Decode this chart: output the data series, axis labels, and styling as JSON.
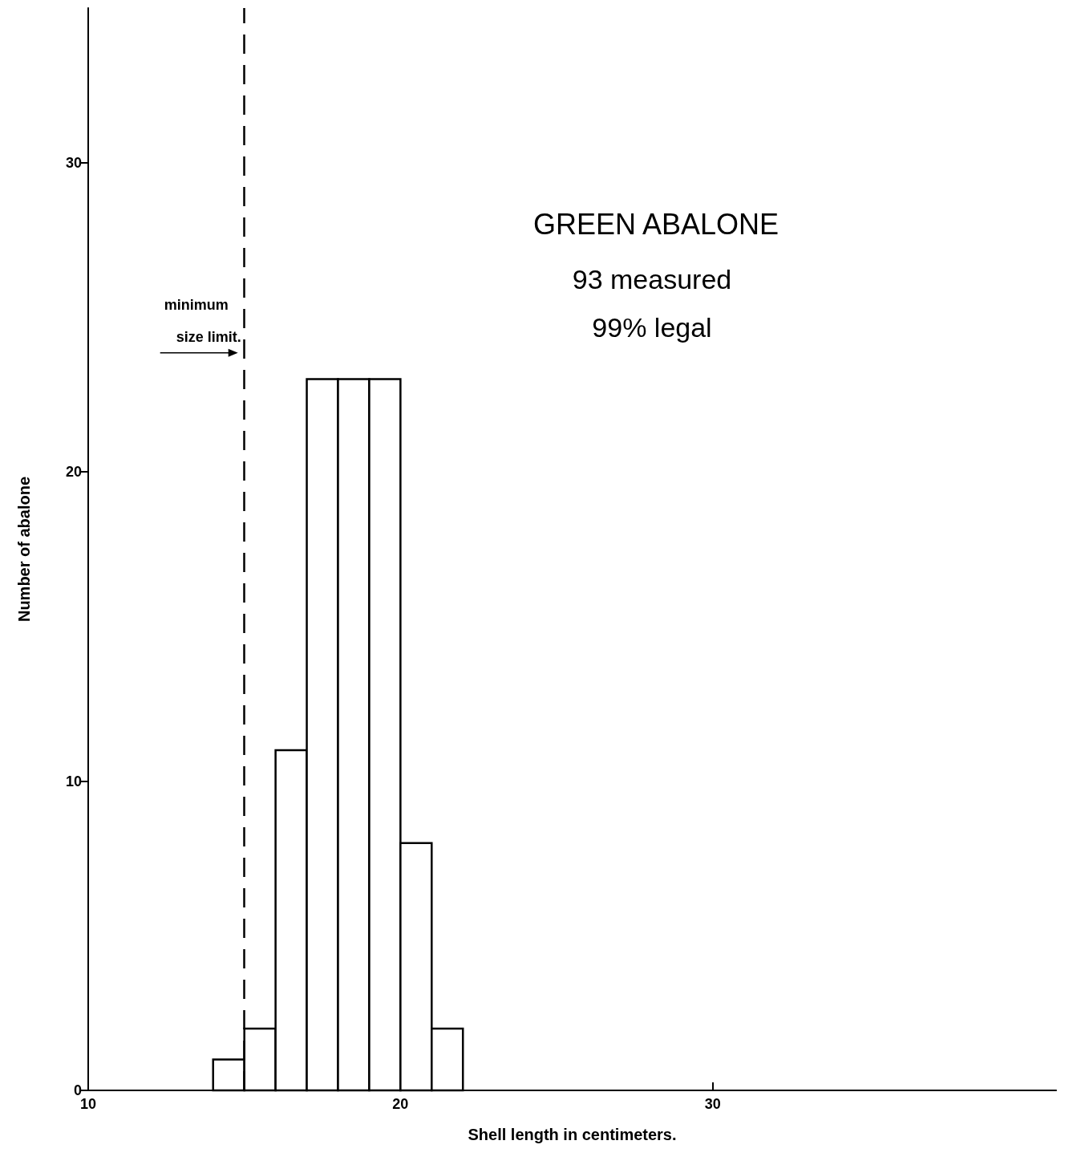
{
  "chart_data": {
    "type": "histogram",
    "title": "GREEN ABALONE",
    "annotations": [
      "93 measured",
      "99% legal"
    ],
    "xlabel": "Shell length in centimeters.",
    "ylabel": "Number of abalone",
    "bins": [
      14,
      15,
      16,
      17,
      18,
      19,
      20,
      21,
      22
    ],
    "values": [
      1,
      2,
      11,
      23,
      23,
      23,
      8,
      2
    ],
    "color": "#000000",
    "xlim": [
      10,
      41
    ],
    "xticks": [
      10,
      20,
      30
    ],
    "ylim": [
      0,
      35
    ],
    "yticks": [
      0,
      10,
      20,
      30
    ],
    "ref_lines": [
      {
        "axis": "x",
        "value": 15,
        "label": "minimum size limit.",
        "line_style": "dashed"
      }
    ],
    "grid": false
  }
}
